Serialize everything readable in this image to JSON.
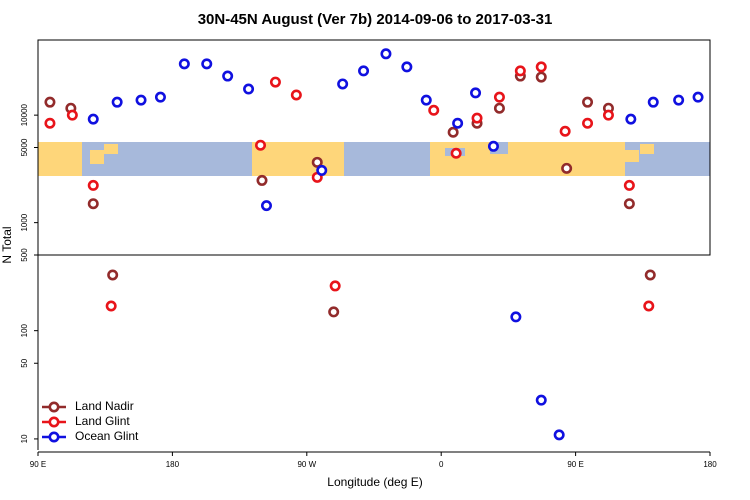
{
  "chart_data": {
    "type": "scatter",
    "title": "30N-45N August (Ver 7b)   2014-09-06 to 2017-03-31",
    "x_label": "Longitude (deg E)",
    "y_label": "N Total",
    "log_y": true,
    "legend": "lower left",
    "xlim": [
      90,
      540
    ],
    "xticks": [
      {
        "value": 90,
        "label": "90 E"
      },
      180,
      {
        "value": 270,
        "label": "90 W"
      },
      {
        "value": 360,
        "label": "0"
      },
      {
        "value": 450,
        "label": "90 E"
      },
      {
        "value": 540,
        "label": "180"
      }
    ],
    "panels": [
      {
        "ylim": [
          500,
          50000
        ],
        "yticks": [
          1000,
          5000,
          10000
        ]
      },
      {
        "ylim": [
          7.9,
          500
        ],
        "yticks": [
          10,
          50,
          100,
          500
        ]
      }
    ],
    "series": [
      {
        "name": "Land Nadir",
        "color": "#922b2b",
        "x": [
          98,
          112,
          127,
          140,
          240,
          277,
          288,
          368,
          384,
          399,
          413,
          427,
          444,
          458,
          472,
          486,
          500
        ],
        "values": [
          13200,
          11600,
          1500,
          327,
          2470,
          3640,
          149,
          6930,
          8410,
          11600,
          23100,
          22600,
          3200,
          13200,
          11600,
          1500,
          327
        ]
      },
      {
        "name": "Land Glint",
        "color": "#e8141a",
        "x": [
          98,
          113,
          127,
          139,
          239,
          249,
          263,
          277,
          289,
          355,
          370,
          384,
          399,
          413,
          427,
          443,
          458,
          472,
          486,
          499
        ],
        "values": [
          8410,
          10000,
          2220,
          169,
          5250,
          20300,
          15400,
          2640,
          259,
          11100,
          4420,
          9380,
          14700,
          25800,
          28100,
          7080,
          8410,
          10000,
          2220,
          169
        ]
      },
      {
        "name": "Ocean Glint",
        "color": "#1010e0",
        "x": [
          127,
          143,
          159,
          172,
          188,
          203,
          217,
          231,
          243,
          280,
          294,
          308,
          323,
          337,
          350,
          371,
          383,
          395,
          410,
          427,
          439,
          487,
          502,
          519,
          532
        ],
        "values": [
          9180,
          13200,
          13800,
          14700,
          30000,
          30000,
          23100,
          17500,
          1440,
          3060,
          19500,
          25800,
          37200,
          28100,
          13800,
          8410,
          16100,
          5130,
          134,
          22.8,
          10.9,
          9180,
          13200,
          13800,
          14700
        ]
      }
    ]
  }
}
